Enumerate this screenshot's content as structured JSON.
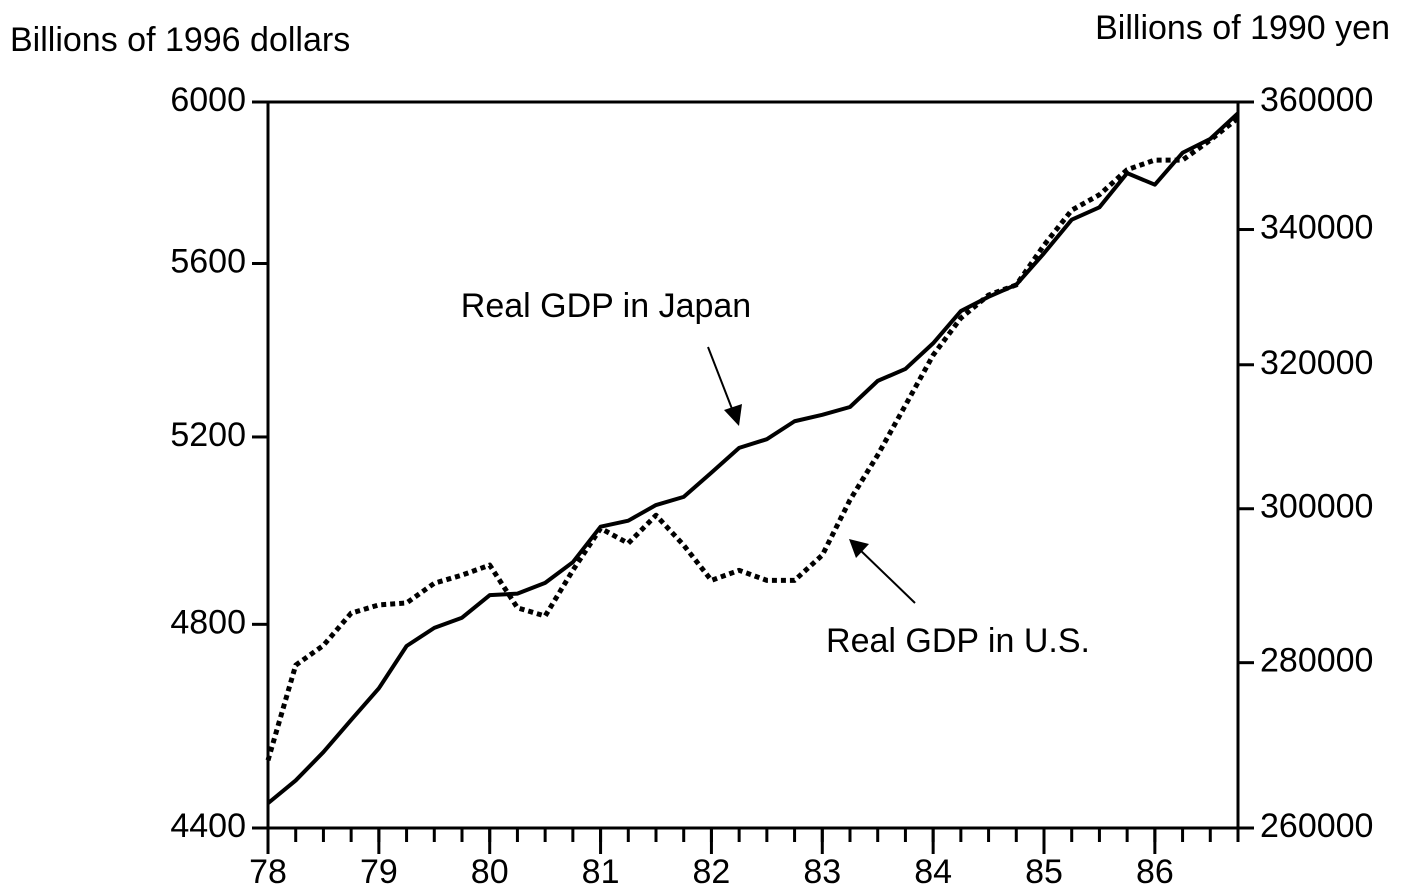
{
  "chart_data": {
    "type": "line",
    "ylabel": "Billions of 1996 dollars",
    "y2label": "Billions of 1990 yen",
    "x": [
      78,
      78.25,
      78.5,
      78.75,
      79,
      79.25,
      79.5,
      79.75,
      80,
      80.25,
      80.5,
      80.75,
      81,
      81.25,
      81.5,
      81.75,
      82,
      82.25,
      82.5,
      82.75,
      83,
      83.25,
      83.5,
      83.75,
      84,
      84.25,
      84.5,
      84.75,
      85,
      85.25,
      85.5,
      85.75,
      86,
      86.25,
      86.5,
      86.75
    ],
    "xlim": [
      78,
      86.75
    ],
    "xticks": [
      78,
      79,
      80,
      81,
      82,
      83,
      84,
      85,
      86
    ],
    "ylim": [
      4400,
      6000
    ],
    "yticks": [
      4400,
      4800,
      5200,
      5600,
      6000
    ],
    "ylog": true,
    "y2lim": [
      260000,
      360000
    ],
    "y2ticks": [
      260000,
      280000,
      300000,
      320000,
      340000,
      360000
    ],
    "y2log": true,
    "series": [
      {
        "name": "Real GDP in Japan",
        "color": "#000000",
        "style": "solid",
        "axis": "y2",
        "values": [
          262900,
          265600,
          269000,
          272900,
          276800,
          282100,
          284400,
          285700,
          288600,
          288800,
          290200,
          292900,
          297600,
          298400,
          300500,
          301600,
          304900,
          308300,
          309500,
          312000,
          312900,
          314000,
          317700,
          319400,
          323100,
          327800,
          329900,
          331700,
          336400,
          341500,
          343400,
          348700,
          346900,
          351900,
          354100,
          358200
        ]
      },
      {
        "name": "Real GDP in U.S.",
        "color": "#000000",
        "style": "dotted",
        "axis": "y",
        "values": [
          4529,
          4717,
          4757,
          4823,
          4840,
          4844,
          4885,
          4902,
          4923,
          4834,
          4817,
          4912,
          5001,
          4969,
          5029,
          4965,
          4891,
          4912,
          4891,
          4891,
          4944,
          5062,
          5160,
          5271,
          5385,
          5471,
          5525,
          5549,
          5644,
          5729,
          5767,
          5829,
          5853,
          5853,
          5903,
          5959
        ]
      }
    ]
  }
}
